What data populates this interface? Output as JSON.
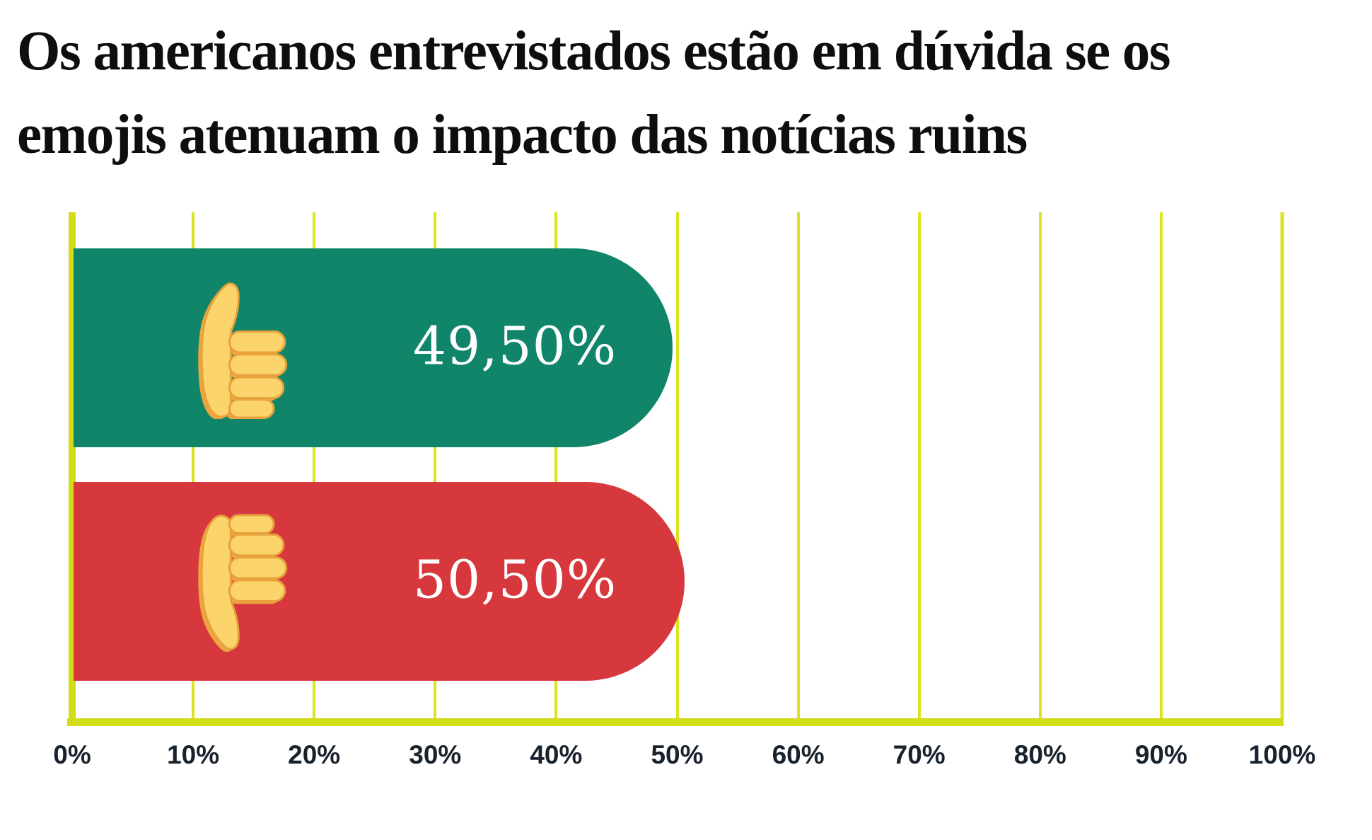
{
  "title": {
    "line1": "Os americanos entrevistados estão em dúvida se os",
    "line2": "emojis atenuam o impacto das notícias ruins"
  },
  "chart_data": {
    "type": "bar",
    "orientation": "horizontal",
    "title": "Os americanos entrevistados estão em dúvida se os emojis atenuam o impacto das notícias ruins",
    "xlabel": "",
    "ylabel": "",
    "xlim": [
      0,
      100
    ],
    "grid": true,
    "x_ticks": [
      "0%",
      "10%",
      "20%",
      "30%",
      "40%",
      "50%",
      "60%",
      "70%",
      "80%",
      "90%",
      "100%"
    ],
    "bars": [
      {
        "category": "thumbs-up",
        "icon": "thumbs-up-emoji",
        "value": 49.5,
        "label": "49,50%",
        "color": "#108569"
      },
      {
        "category": "thumbs-down",
        "icon": "thumbs-down-emoji",
        "value": 50.5,
        "label": "50,50%",
        "color": "#d6383e"
      }
    ]
  },
  "colors": {
    "background": "#ffffff",
    "title_text": "#0e0e0e",
    "axis": "#d2dd16",
    "gridline": "#dce321",
    "tick_text": "#18222d",
    "bar_positive": "#108569",
    "bar_negative": "#d6383e",
    "value_text": "#ffffff",
    "emoji_fill": "#fcd46c",
    "emoji_shade": "#eda63f",
    "emoji_outline": "#e8a23c"
  }
}
